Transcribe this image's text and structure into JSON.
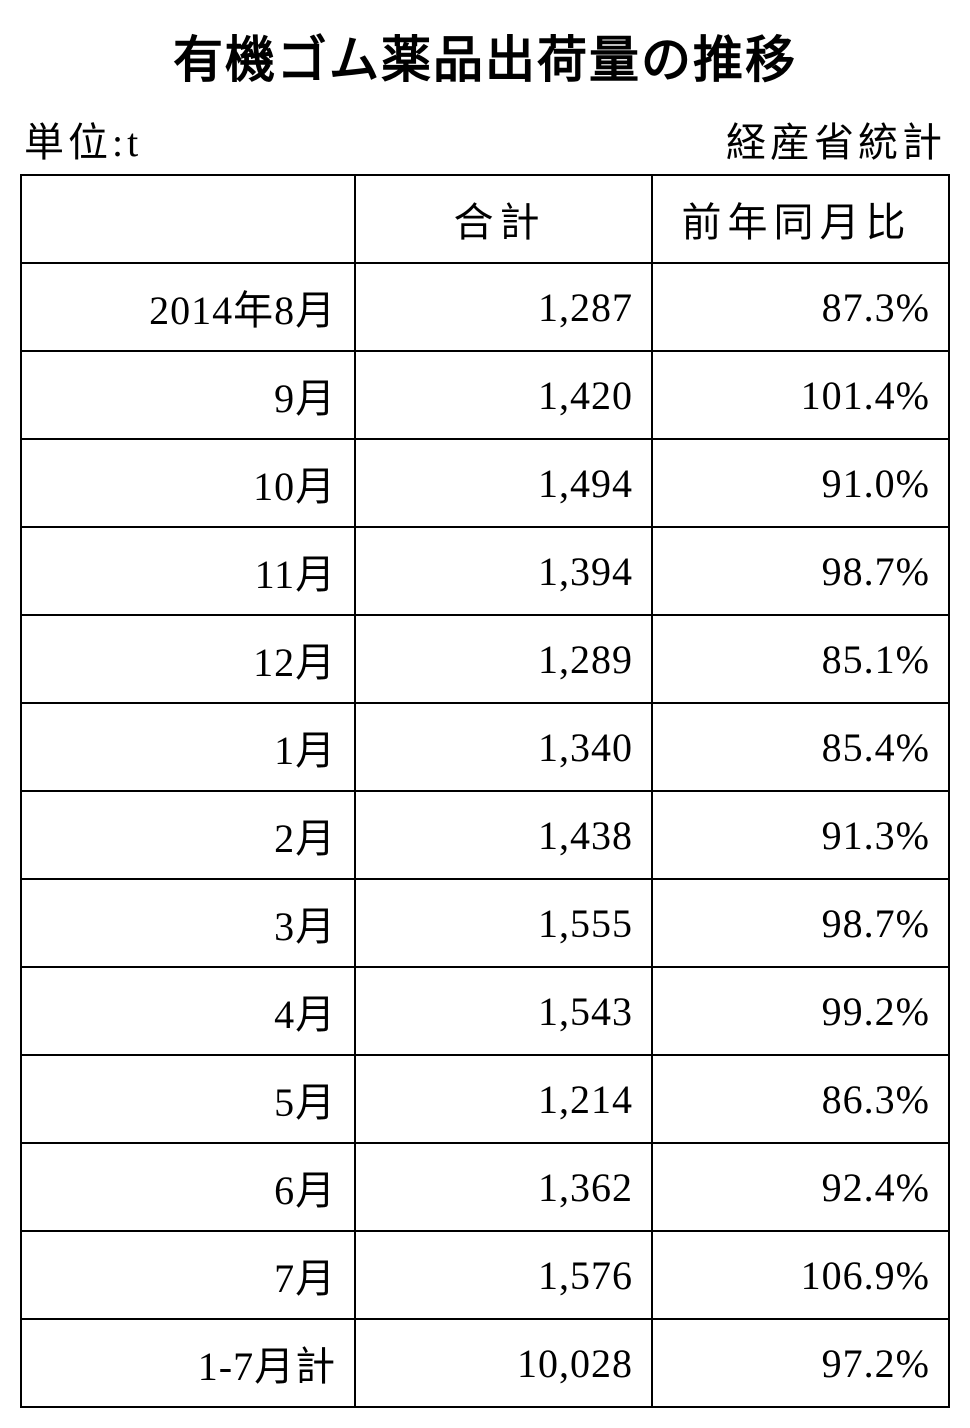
{
  "title": "有機ゴム薬品出荷量の推移",
  "unit_label": "単位:t",
  "source_label": "経産省統計",
  "table": {
    "columns": [
      "",
      "合計",
      "前年同月比"
    ],
    "rows": [
      [
        "2014年8月",
        "1,287",
        "87.3%"
      ],
      [
        "9月",
        "1,420",
        "101.4%"
      ],
      [
        "10月",
        "1,494",
        "91.0%"
      ],
      [
        "11月",
        "1,394",
        "98.7%"
      ],
      [
        "12月",
        "1,289",
        "85.1%"
      ],
      [
        "1月",
        "1,340",
        "85.4%"
      ],
      [
        "2月",
        "1,438",
        "91.3%"
      ],
      [
        "3月",
        "1,555",
        "98.7%"
      ],
      [
        "4月",
        "1,543",
        "99.2%"
      ],
      [
        "5月",
        "1,214",
        "86.3%"
      ],
      [
        "6月",
        "1,362",
        "92.4%"
      ],
      [
        "7月",
        "1,576",
        "106.9%"
      ],
      [
        "1-7月計",
        "10,028",
        "97.2%"
      ]
    ]
  },
  "style": {
    "background_color": "#ffffff",
    "text_color": "#000000",
    "border_color": "#000000",
    "title_fontsize": 50,
    "subhead_fontsize": 40,
    "cell_fontsize": 40,
    "font_family": "serif-mincho"
  }
}
